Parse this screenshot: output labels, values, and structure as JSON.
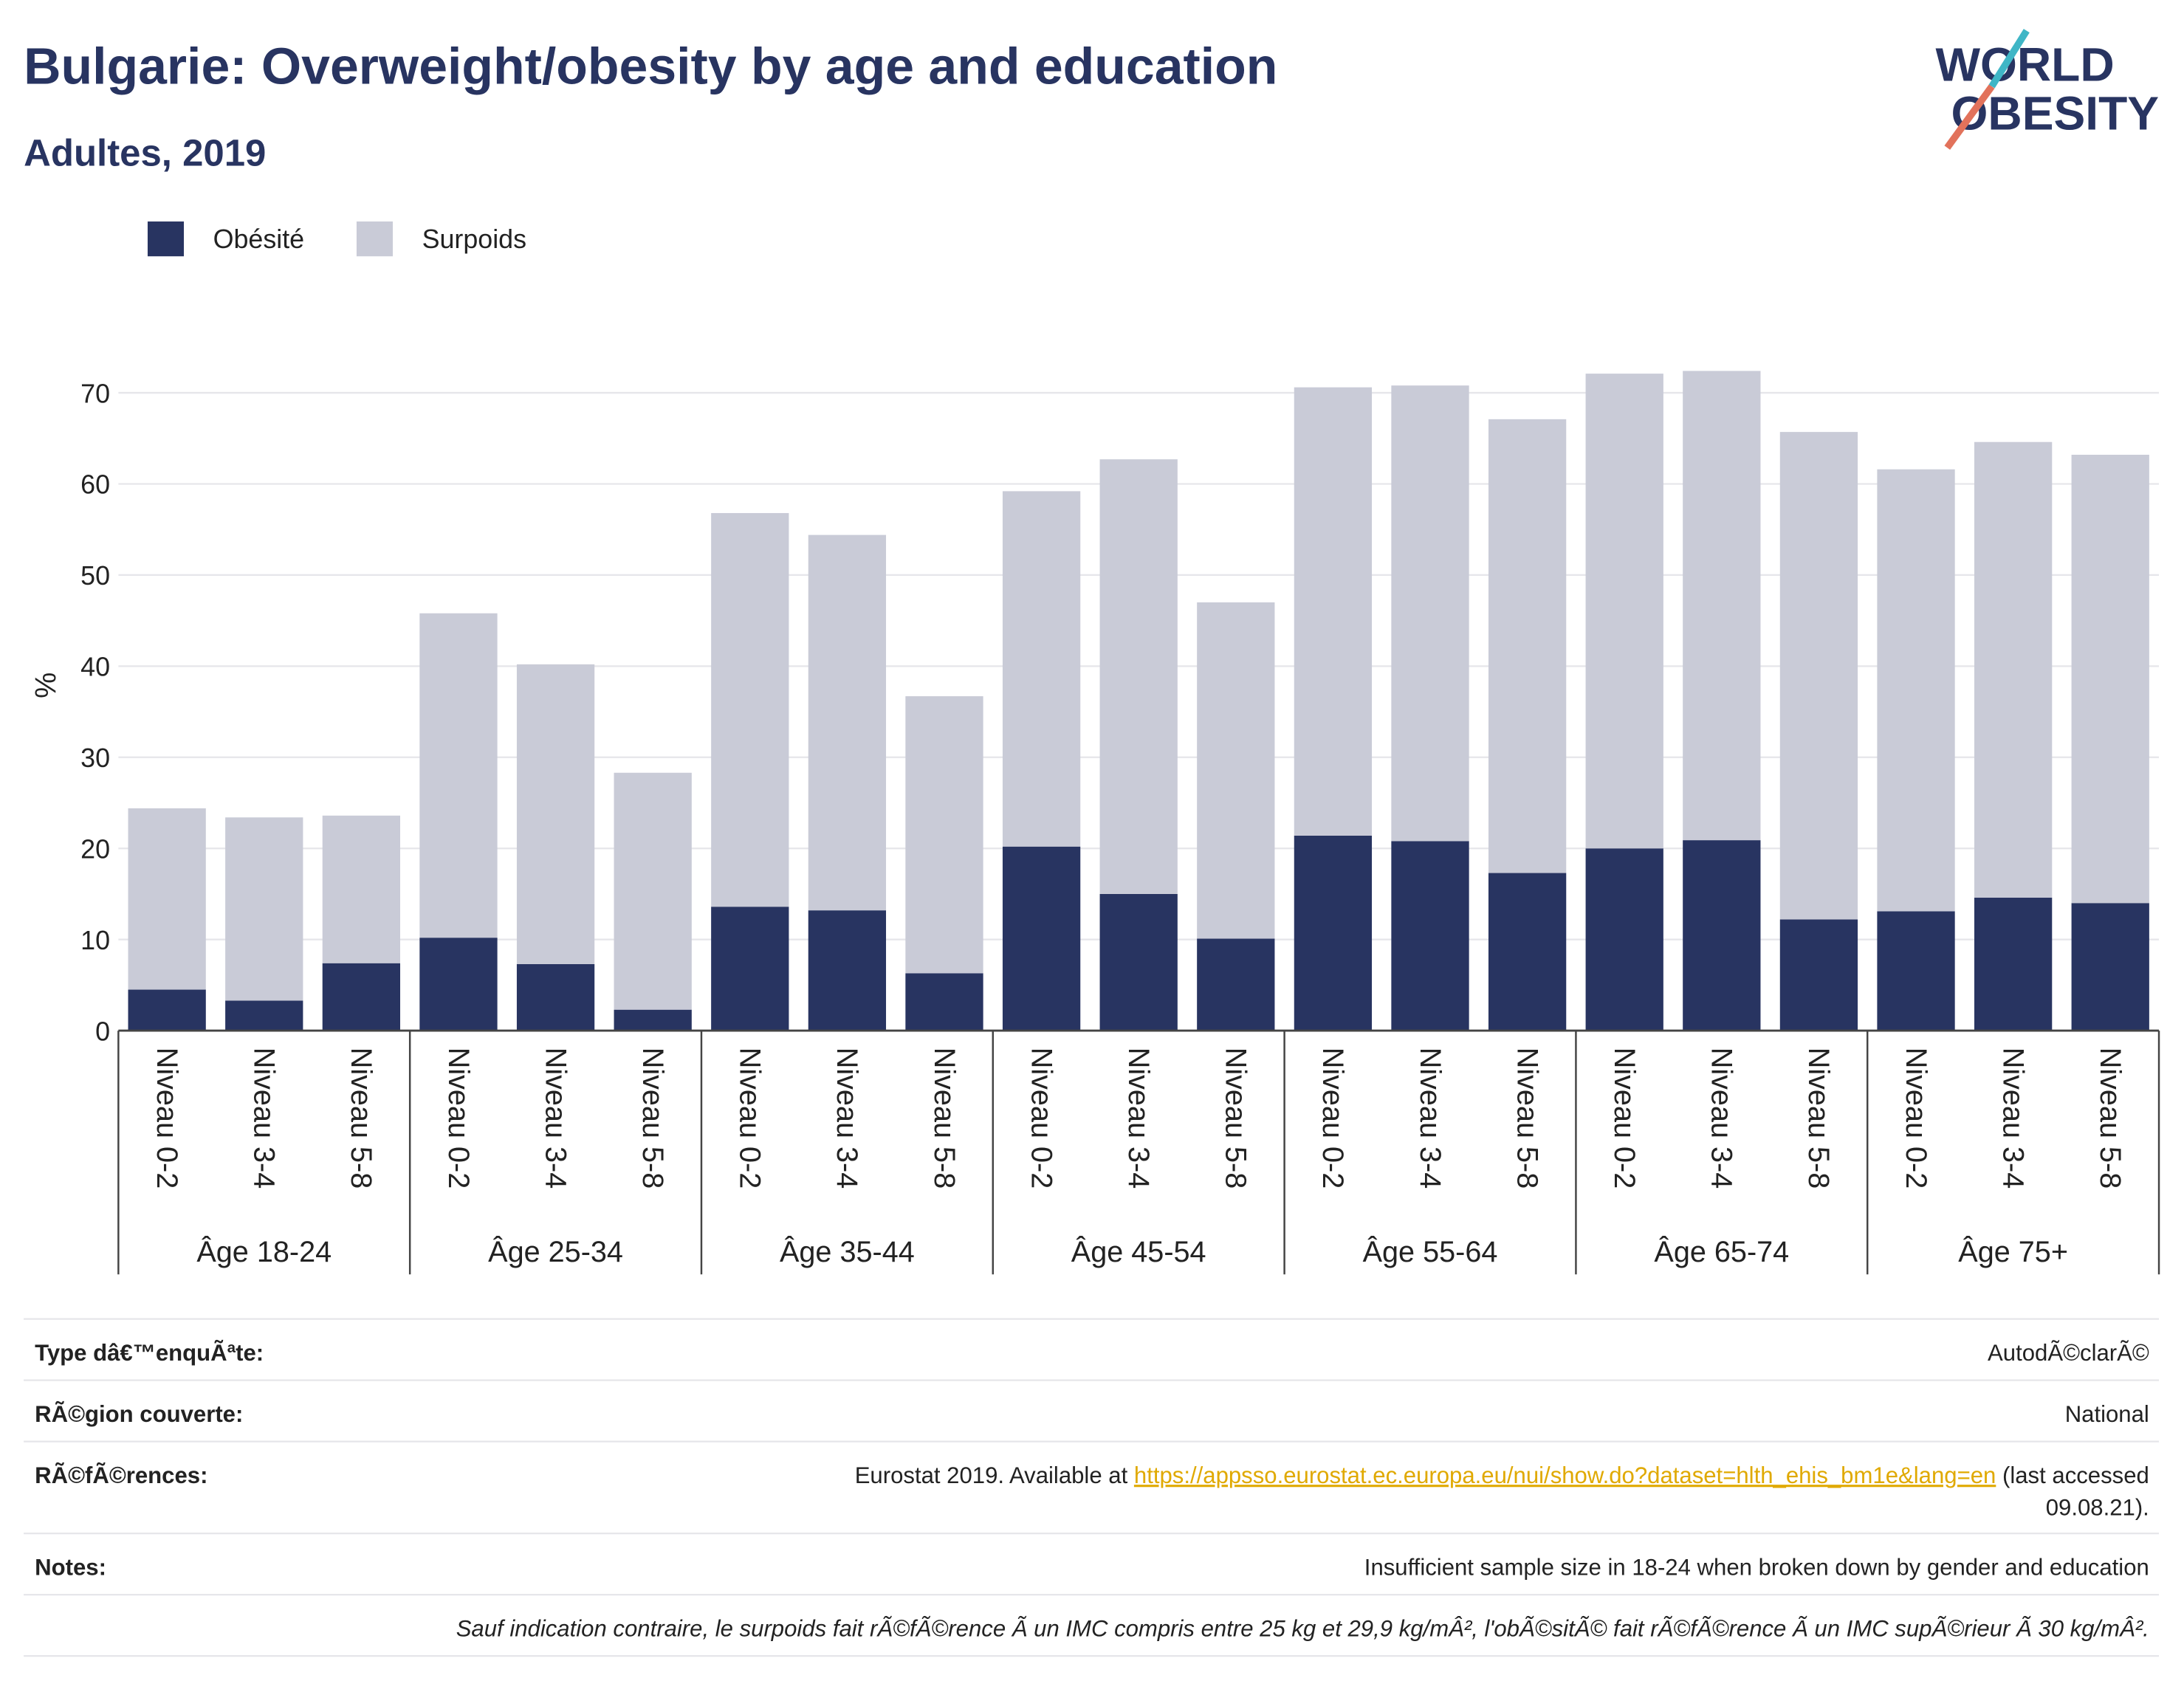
{
  "chart_data": {
    "type": "stacked_bar",
    "title": "Bulgarie: Overweight/obesity by age and education",
    "subtitle": "Adultes, 2019",
    "logo": [
      "WORLD",
      "OBESITY"
    ],
    "y_label": "%",
    "groups": [
      {
        "name": "Âge 18-24",
        "categories": [
          "Niveau 0-2",
          "Niveau 3-4",
          "Niveau 5-8"
        ]
      },
      {
        "name": "Âge 25-34",
        "categories": [
          "Niveau 0-2",
          "Niveau 3-4",
          "Niveau 5-8"
        ]
      },
      {
        "name": "Âge 35-44",
        "categories": [
          "Niveau 0-2",
          "Niveau 3-4",
          "Niveau 5-8"
        ]
      },
      {
        "name": "Âge 45-54",
        "categories": [
          "Niveau 0-2",
          "Niveau 3-4",
          "Niveau 5-8"
        ]
      },
      {
        "name": "Âge 55-64",
        "categories": [
          "Niveau 0-2",
          "Niveau 3-4",
          "Niveau 5-8"
        ]
      },
      {
        "name": "Âge 65-74",
        "categories": [
          "Niveau 0-2",
          "Niveau 3-4",
          "Niveau 5-8"
        ]
      },
      {
        "name": "Âge 75+",
        "categories": [
          "Niveau 0-2",
          "Niveau 3-4",
          "Niveau 5-8"
        ]
      }
    ],
    "series": [
      {
        "name": "Obésité",
        "color": "#283461",
        "values": [
          4.5,
          3.3,
          7.4,
          10.2,
          7.3,
          2.3,
          13.6,
          13.2,
          6.3,
          20.2,
          15.0,
          10.1,
          21.4,
          20.8,
          17.3,
          20.0,
          20.9,
          12.2,
          13.1,
          14.6,
          14.0
        ]
      },
      {
        "name": "Surpoids",
        "color": "#c9cbd7",
        "values": [
          19.9,
          20.1,
          16.2,
          35.6,
          32.9,
          26.0,
          43.2,
          41.2,
          30.4,
          39.0,
          47.7,
          36.9,
          49.2,
          50.0,
          49.8,
          52.1,
          51.5,
          53.5,
          48.5,
          50.0,
          49.2
        ]
      }
    ],
    "ylim": [
      0,
      70
    ],
    "yticks": [
      0,
      10,
      20,
      30,
      40,
      50,
      60,
      70
    ],
    "grid": true,
    "legend": "top-left"
  },
  "info": {
    "rows": [
      {
        "label": "Type dâ€™enquÃªte:",
        "value": "AutodÃ©clarÃ©"
      },
      {
        "label": "RÃ©gion couverte:",
        "value": "National"
      }
    ],
    "references": {
      "label": "RÃ©fÃ©rences:",
      "text_before": "Eurostat 2019. Available at ",
      "link": "https://appsso.eurostat.ec.europa.eu/nui/show.do?dataset=hlth_ehis_bm1e&lang=en",
      "text_after": " (last accessed",
      "text_after_2": "09.08.21)."
    },
    "notes": {
      "label": "Notes:",
      "value": "Insufficient sample size in 18-24 when broken down by gender and education"
    },
    "footnote": "Sauf indication contraire, le surpoids fait rÃ©fÃ©rence Ã  un IMC compris entre 25 kg et 29,9 kg/mÂ², l'obÃ©sitÃ© fait rÃ©fÃ©rence Ã  un IMC supÃ©rieur Ã  30 kg/mÂ²."
  }
}
